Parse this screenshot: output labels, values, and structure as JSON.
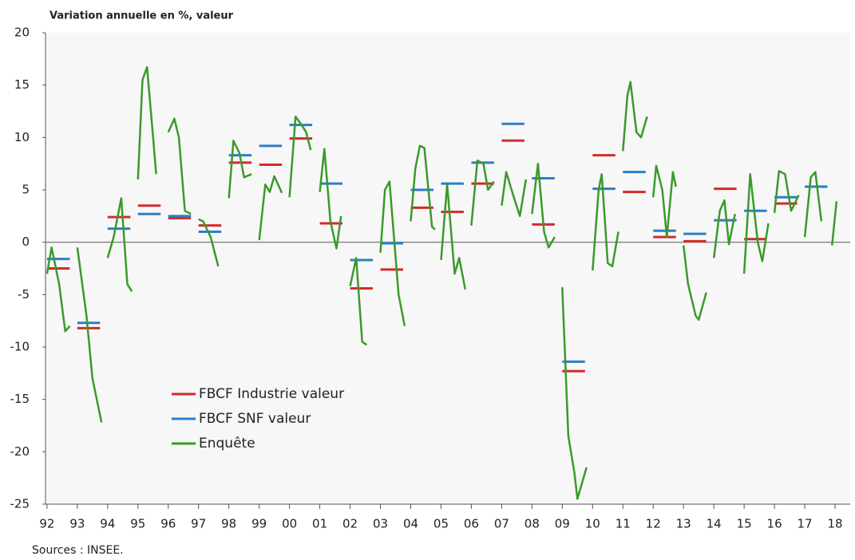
{
  "chart_data": {
    "type": "line",
    "title": "Variation annuelle en %, valeur",
    "source": "Sources : INSEE.",
    "xlim": [
      1991.95,
      2018.5
    ],
    "ylim": [
      -25,
      20
    ],
    "yticks": [
      20,
      15,
      10,
      5,
      0,
      -5,
      -10,
      -15,
      -20,
      -25
    ],
    "xticks": [
      {
        "value": 1992,
        "label": "92"
      },
      {
        "value": 1993,
        "label": "93"
      },
      {
        "value": 1994,
        "label": "94"
      },
      {
        "value": 1995,
        "label": "95"
      },
      {
        "value": 1996,
        "label": "96"
      },
      {
        "value": 1997,
        "label": "97"
      },
      {
        "value": 1998,
        "label": "98"
      },
      {
        "value": 1999,
        "label": "99"
      },
      {
        "value": 2000,
        "label": "00"
      },
      {
        "value": 2001,
        "label": "01"
      },
      {
        "value": 2002,
        "label": "02"
      },
      {
        "value": 2003,
        "label": "03"
      },
      {
        "value": 2004,
        "label": "04"
      },
      {
        "value": 2005,
        "label": "05"
      },
      {
        "value": 2006,
        "label": "06"
      },
      {
        "value": 2007,
        "label": "07"
      },
      {
        "value": 2008,
        "label": "08"
      },
      {
        "value": 2009,
        "label": "09"
      },
      {
        "value": 2010,
        "label": "10"
      },
      {
        "value": 2011,
        "label": "11"
      },
      {
        "value": 2012,
        "label": "12"
      },
      {
        "value": 2013,
        "label": "13"
      },
      {
        "value": 2014,
        "label": "14"
      },
      {
        "value": 2015,
        "label": "15"
      },
      {
        "value": 2016,
        "label": "16"
      },
      {
        "value": 2017,
        "label": "17"
      },
      {
        "value": 2018,
        "label": "18"
      }
    ],
    "legend": "lower left",
    "series": [
      {
        "name": "FBCF Industrie valeur",
        "color": "#d42a2a",
        "marker": "dash",
        "x": [
          1992,
          1993,
          1994,
          1995,
          1996,
          1997,
          1998,
          1999,
          2000,
          2001,
          2002,
          2003,
          2004,
          2005,
          2006,
          2007,
          2008,
          2009,
          2010,
          2011,
          2012,
          2013,
          2014,
          2015,
          2016,
          2017
        ],
        "values": [
          -2.5,
          -8.2,
          2.4,
          3.5,
          2.3,
          1.6,
          7.6,
          7.4,
          9.9,
          1.8,
          -4.4,
          -2.6,
          3.3,
          2.9,
          5.6,
          9.7,
          1.7,
          -12.3,
          8.3,
          4.8,
          0.5,
          0.1,
          5.1,
          0.3,
          3.7,
          null
        ]
      },
      {
        "name": "FBCF SNF valeur",
        "color": "#2a7fc9",
        "marker": "dash",
        "x": [
          1992,
          1993,
          1994,
          1995,
          1996,
          1997,
          1998,
          1999,
          2000,
          2001,
          2002,
          2003,
          2004,
          2005,
          2006,
          2007,
          2008,
          2009,
          2010,
          2011,
          2012,
          2013,
          2014,
          2015,
          2016,
          2017
        ],
        "values": [
          -1.6,
          -7.7,
          1.3,
          2.7,
          2.5,
          1.0,
          8.3,
          9.2,
          11.2,
          5.6,
          -1.7,
          -0.1,
          5.0,
          5.6,
          7.6,
          11.3,
          6.1,
          -11.4,
          5.1,
          6.7,
          1.1,
          0.8,
          2.1,
          3.0,
          4.3,
          5.3
        ]
      },
      {
        "name": "Enquête",
        "color": "#3a9a2a",
        "marker": "line",
        "x": [
          1992.0,
          1992.15,
          1992.4,
          1992.6,
          1992.75,
          1992.9,
          1993.0,
          1993.3,
          1993.5,
          1993.8,
          1993.9,
          1994.0,
          1994.2,
          1994.45,
          1994.65,
          1994.8,
          1994.9,
          1995.0,
          1995.15,
          1995.3,
          1995.5,
          1995.6,
          1995.8,
          1996.0,
          1996.2,
          1996.35,
          1996.55,
          1996.75,
          1996.9,
          1997.0,
          1997.15,
          1997.4,
          1997.65,
          1997.85,
          1998.0,
          1998.15,
          1998.35,
          1998.5,
          1998.75,
          1998.9,
          1999.0,
          1999.2,
          1999.35,
          1999.5,
          1999.75,
          1999.9,
          2000.0,
          2000.2,
          2000.4,
          2000.55,
          2000.7,
          2000.85,
          2001.0,
          2001.15,
          2001.35,
          2001.55,
          2001.7,
          2001.85,
          2002.0,
          2002.2,
          2002.4,
          2002.55,
          2002.8,
          2003.0,
          2003.15,
          2003.3,
          2003.6,
          2003.8,
          2003.9,
          2004.0,
          2004.15,
          2004.3,
          2004.45,
          2004.7,
          2004.8,
          2004.9,
          2005.0,
          2005.2,
          2005.45,
          2005.6,
          2005.8,
          2005.9,
          2006.0,
          2006.2,
          2006.4,
          2006.55,
          2006.75,
          2006.9,
          2007.0,
          2007.15,
          2007.4,
          2007.6,
          2007.8,
          2007.9,
          2008.0,
          2008.2,
          2008.4,
          2008.55,
          2008.75,
          2008.9,
          2009.0,
          2009.2,
          2009.4,
          2009.5,
          2009.8,
          2009.9,
          2010.0,
          2010.2,
          2010.3,
          2010.5,
          2010.65,
          2010.85,
          2010.92,
          2011.0,
          2011.15,
          2011.25,
          2011.45,
          2011.6,
          2011.8,
          2011.9,
          2012.0,
          2012.1,
          2012.3,
          2012.45,
          2012.65,
          2012.75,
          2012.9,
          2013.0,
          2013.15,
          2013.4,
          2013.5,
          2013.75,
          2013.9,
          2014.0,
          2014.2,
          2014.35,
          2014.5,
          2014.7,
          2014.85,
          2015.0,
          2015.2,
          2015.45,
          2015.6,
          2015.8,
          2015.9,
          2016.0,
          2016.15,
          2016.35,
          2016.55,
          2016.8,
          2016.9,
          2017.0,
          2017.2,
          2017.35,
          2017.55,
          2017.75,
          2017.9,
          2018.05
        ],
        "values": [
          -3,
          -0.5,
          -4,
          -8.5,
          -8,
          null,
          -0.5,
          -7,
          -13,
          -17.2,
          null,
          -1.5,
          0.5,
          4.2,
          -4,
          -4.7,
          null,
          6,
          15.5,
          16.7,
          10,
          6.5,
          null,
          10.5,
          11.8,
          10,
          3,
          2.7,
          null,
          2.2,
          2,
          0.5,
          -2.3,
          null,
          4.2,
          9.7,
          8.5,
          6.2,
          6.5,
          null,
          0.2,
          5.5,
          4.8,
          6.3,
          4.7,
          null,
          4.3,
          12,
          11.2,
          10.5,
          8.8,
          null,
          4.8,
          8.9,
          2,
          -0.6,
          2.5,
          null,
          -4.2,
          -1.5,
          -9.5,
          -9.8,
          null,
          -1,
          5,
          5.8,
          -5,
          -8,
          null,
          2,
          7,
          9.2,
          9,
          1.5,
          1.2,
          null,
          -1.7,
          5.5,
          -3,
          -1.5,
          -4.5,
          null,
          1.6,
          7.8,
          7.5,
          5,
          5.8,
          null,
          3.5,
          6.7,
          4.3,
          2.5,
          6,
          null,
          2.7,
          7.5,
          1,
          -0.5,
          0.5,
          null,
          -4.3,
          -18.5,
          -22,
          -24.5,
          -21.5,
          null,
          -2.7,
          5,
          6.5,
          -2,
          -2.3,
          1,
          null,
          8.7,
          14,
          15.3,
          10.5,
          10,
          12,
          null,
          4.3,
          7.3,
          5,
          0.5,
          6.7,
          5.3,
          null,
          -0.3,
          -4,
          -7,
          -7.4,
          -4.8,
          null,
          -1.5,
          3,
          4,
          -0.2,
          2.7,
          null,
          -3,
          6.5,
          0,
          -1.8,
          1.8,
          null,
          2.8,
          6.8,
          6.5,
          3,
          4.5,
          null,
          0.5,
          6.2,
          6.7,
          2,
          null,
          -0.3,
          3.9
        ]
      }
    ]
  }
}
